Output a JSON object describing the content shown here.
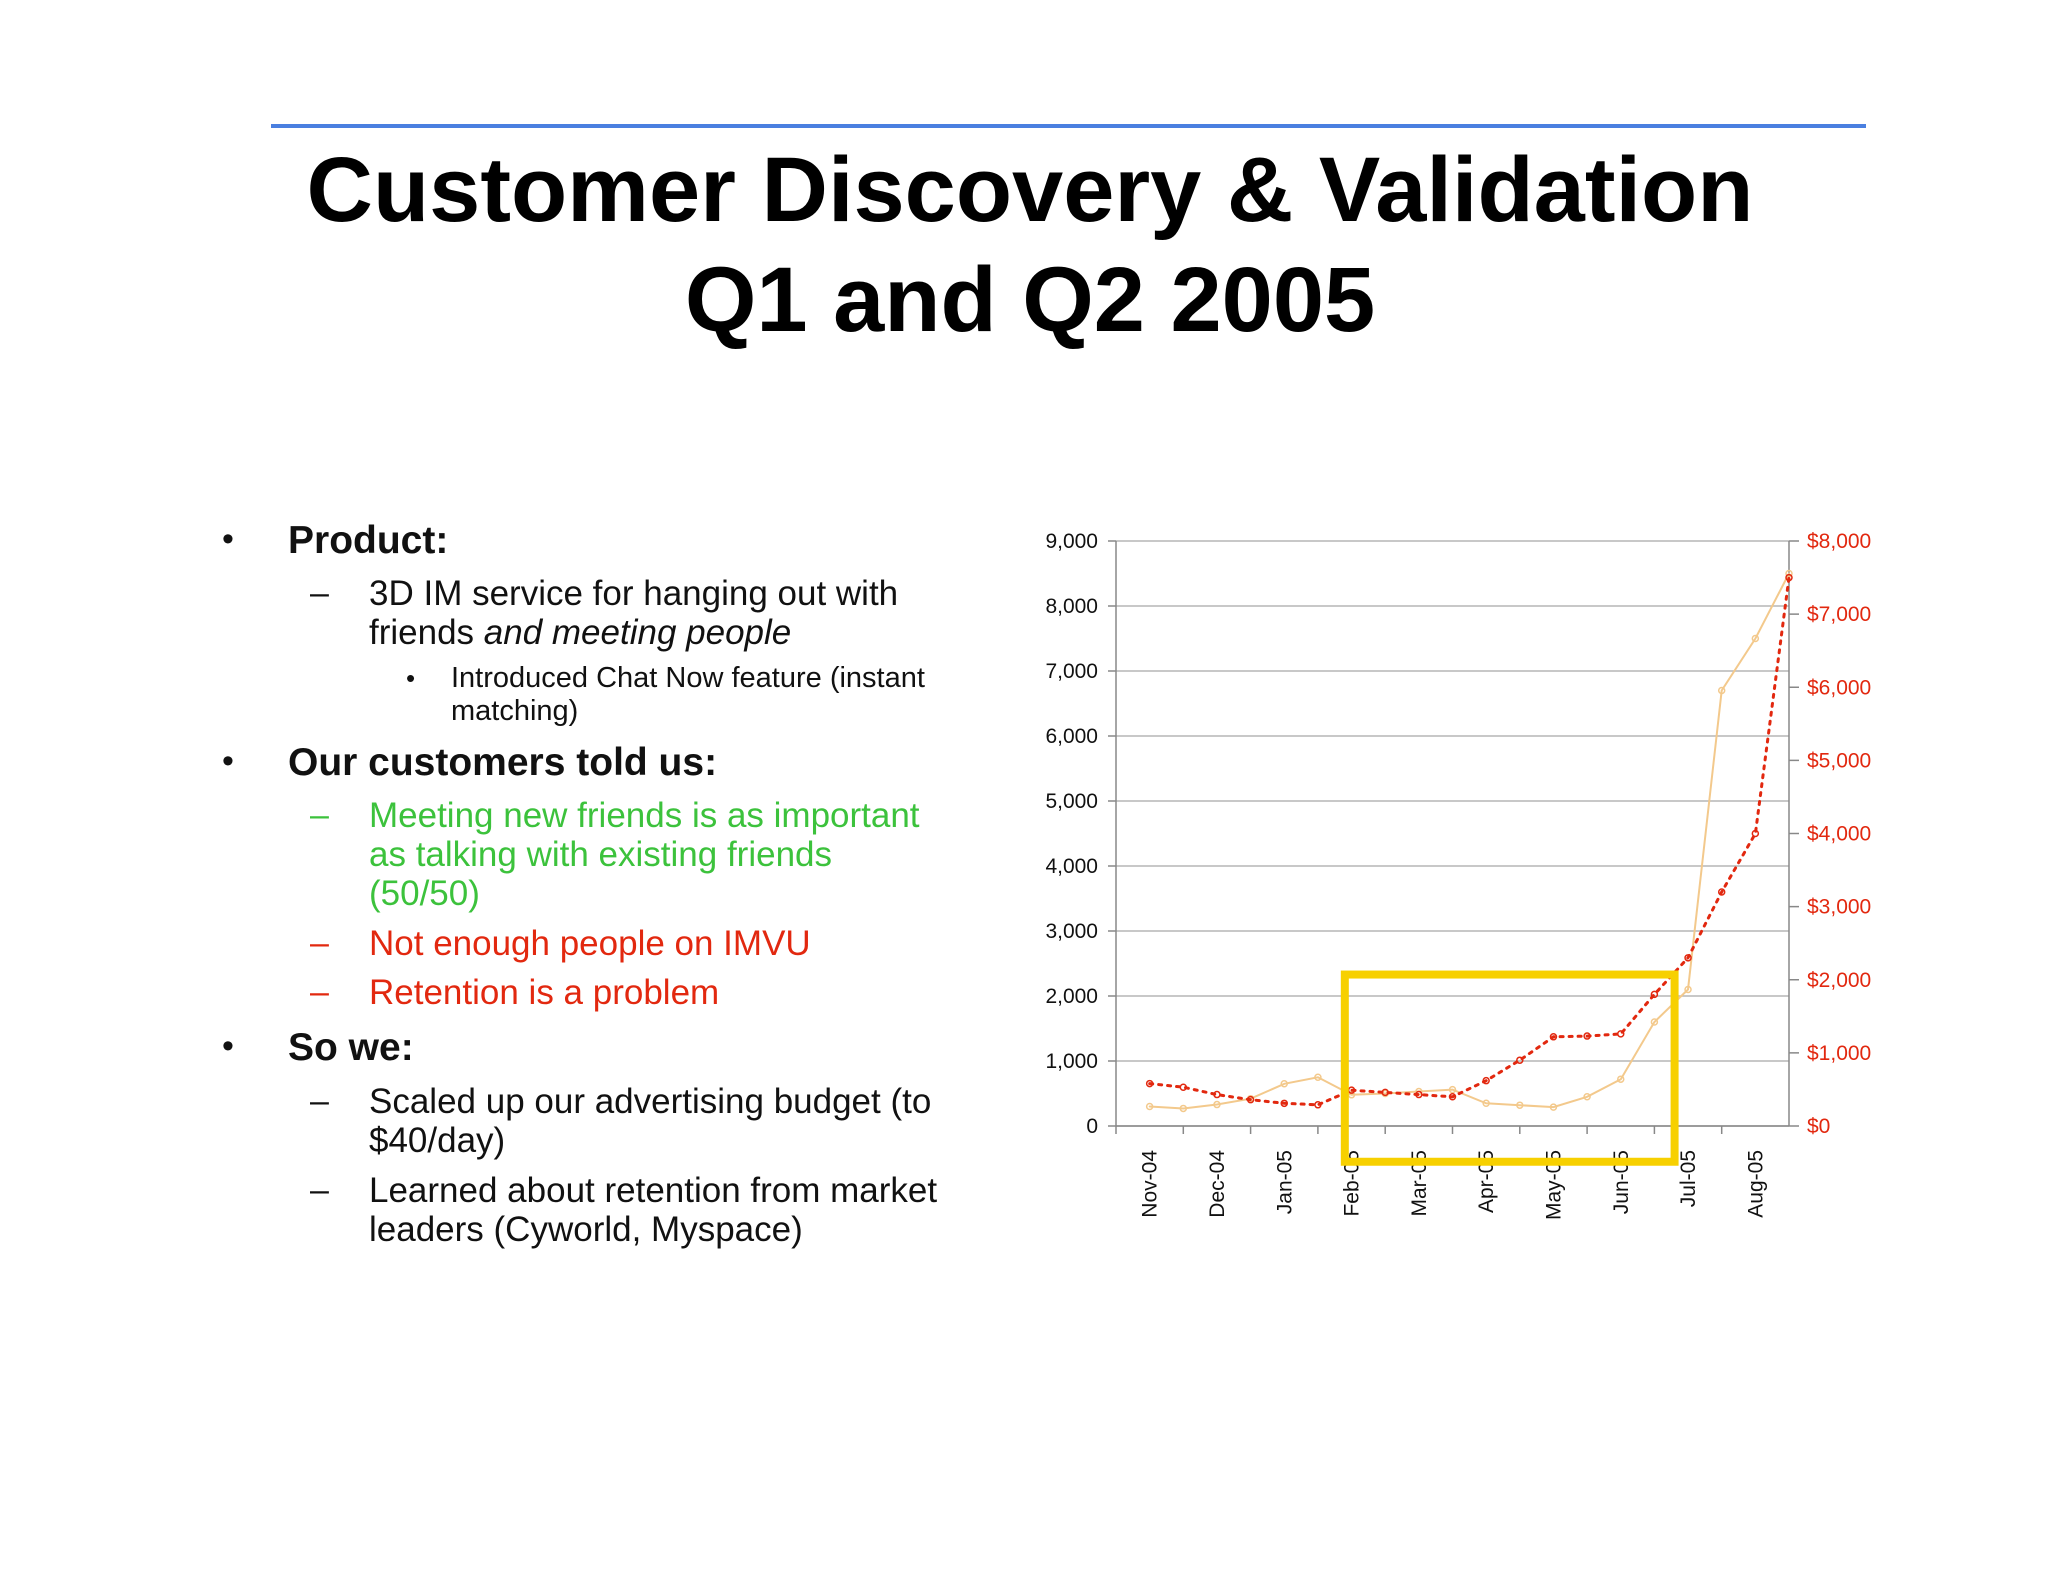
{
  "slide": {
    "title_line1": "Customer Discovery & Validation",
    "title_line2": "Q1 and Q2 2005"
  },
  "bullets": {
    "product": {
      "label": "Product:",
      "item1_line1": "3D IM service for hanging out with",
      "item1_line2_plain": "friends ",
      "item1_line2_italic": "and meeting people",
      "sub1_line1": "Introduced Chat Now feature (instant",
      "sub1_line2": "matching)"
    },
    "customers": {
      "label": "Our customers told us:",
      "item1_line1": "Meeting new friends is as important",
      "item1_line2": "as talking with existing friends",
      "item1_line3": "(50/50)",
      "item2": "Not enough people on IMVU",
      "item3": "Retention is a problem"
    },
    "so_we": {
      "label": "So we:",
      "item1_line1": "Scaled up our advertising budget (to",
      "item1_line2": "$40/day)",
      "item2_line1": "Learned about retention from market",
      "item2_line2": "leaders (Cyworld, Myspace)"
    },
    "bullet_symbol": "•",
    "dash_symbol": "–"
  },
  "colors": {
    "title_rule": "#4a7fe0",
    "green_text": "#3cc23c",
    "red_text": "#e2280f",
    "left_series": "#f3c98c",
    "right_series": "#e2280f",
    "highlight_box": "#f7d000"
  },
  "chart_data": {
    "type": "line",
    "categories": [
      "Nov-04",
      "Dec-04",
      "Jan-05",
      "Feb-05",
      "Mar-05",
      "Apr-05",
      "May-05",
      "Jun-05",
      "Jul-05",
      "Aug-05"
    ],
    "x_tick_labels": [
      "Nov-04",
      "Dec-04",
      "Jan-05",
      "Feb-05",
      "Mar-05",
      "Apr-05",
      "May-05",
      "Jun-05",
      "Jul-05",
      "Aug-05"
    ],
    "x": [
      0,
      0.5,
      1,
      1.5,
      2,
      2.5,
      3,
      3.5,
      4,
      4.5,
      5,
      5.5,
      6,
      6.5,
      7,
      7.5,
      8,
      8.5,
      9,
      9.5
    ],
    "series": [
      {
        "axis": "left",
        "style": "solid",
        "color": "#f3c98c",
        "values": [
          300,
          270,
          330,
          420,
          650,
          750,
          480,
          500,
          530,
          560,
          350,
          320,
          290,
          450,
          720,
          1600,
          2100,
          6700,
          7500,
          8500
        ]
      },
      {
        "axis": "right",
        "style": "dotted",
        "color": "#e2280f",
        "values": [
          580,
          530,
          430,
          360,
          310,
          290,
          490,
          460,
          430,
          400,
          620,
          900,
          1220,
          1230,
          1260,
          1800,
          2300,
          3200,
          4000,
          7500
        ]
      }
    ],
    "ylim_left": [
      0,
      9000
    ],
    "ylim_right": [
      0,
      8000
    ],
    "yticks_left": [
      "0",
      "1,000",
      "2,000",
      "3,000",
      "4,000",
      "5,000",
      "6,000",
      "7,000",
      "8,000",
      "9,000"
    ],
    "yticks_right": [
      "$0",
      "$1,000",
      "$2,000",
      "$3,000",
      "$4,000",
      "$5,000",
      "$6,000",
      "$7,000",
      "$8,000"
    ],
    "grid": true,
    "highlight": {
      "x_range": [
        3,
        7.8
      ],
      "y_range": [
        -550,
        2330
      ],
      "color": "#f7d000"
    }
  }
}
